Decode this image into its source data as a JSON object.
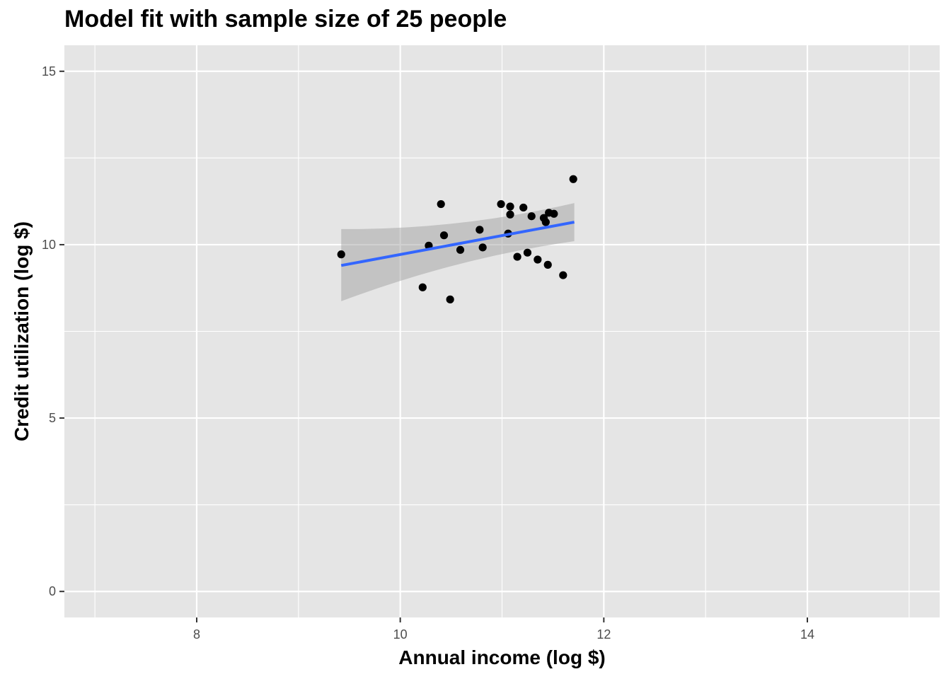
{
  "chart_data": {
    "type": "scatter",
    "title": "Model fit with sample size of 25 people",
    "xlabel": "Annual income (log $)",
    "ylabel": "Credit utilization (log $)",
    "xlim": [
      6.7,
      15.3
    ],
    "ylim": [
      -0.75,
      15.75
    ],
    "xticks": [
      8,
      10,
      12,
      14
    ],
    "yticks": [
      0,
      5,
      10,
      15
    ],
    "xminor": [
      7,
      9,
      11,
      13,
      15
    ],
    "yminor": [
      2.5,
      7.5,
      12.5
    ],
    "grid": true,
    "points": [
      {
        "x": 9.42,
        "y": 9.72
      },
      {
        "x": 10.22,
        "y": 8.77
      },
      {
        "x": 10.28,
        "y": 9.97
      },
      {
        "x": 10.4,
        "y": 11.17
      },
      {
        "x": 10.43,
        "y": 10.27
      },
      {
        "x": 10.49,
        "y": 8.42
      },
      {
        "x": 10.59,
        "y": 9.85
      },
      {
        "x": 10.78,
        "y": 10.43
      },
      {
        "x": 10.81,
        "y": 9.92
      },
      {
        "x": 10.99,
        "y": 11.17
      },
      {
        "x": 11.06,
        "y": 10.32
      },
      {
        "x": 11.08,
        "y": 11.1
      },
      {
        "x": 11.08,
        "y": 10.87
      },
      {
        "x": 11.15,
        "y": 9.65
      },
      {
        "x": 11.21,
        "y": 11.07
      },
      {
        "x": 11.25,
        "y": 9.77
      },
      {
        "x": 11.29,
        "y": 10.82
      },
      {
        "x": 11.35,
        "y": 9.57
      },
      {
        "x": 11.41,
        "y": 10.77
      },
      {
        "x": 11.43,
        "y": 10.65
      },
      {
        "x": 11.45,
        "y": 9.42
      },
      {
        "x": 11.46,
        "y": 10.92
      },
      {
        "x": 11.51,
        "y": 10.89
      },
      {
        "x": 11.6,
        "y": 9.12
      },
      {
        "x": 11.7,
        "y": 11.89
      }
    ],
    "fit": {
      "x": [
        9.42,
        11.71
      ],
      "y": [
        9.4,
        10.65
      ],
      "ci_upper": [
        10.45,
        11.2
      ],
      "ci_lower": [
        8.37,
        10.1
      ],
      "ci_mid_x": 10.56,
      "ci_mid_upper": 10.42,
      "ci_mid_lower": 9.62
    },
    "colors": {
      "panel": "#e5e5e5",
      "grid_major": "#ffffff",
      "points": "#000000",
      "line": "#3366ff",
      "ribbon": "#999999"
    }
  }
}
